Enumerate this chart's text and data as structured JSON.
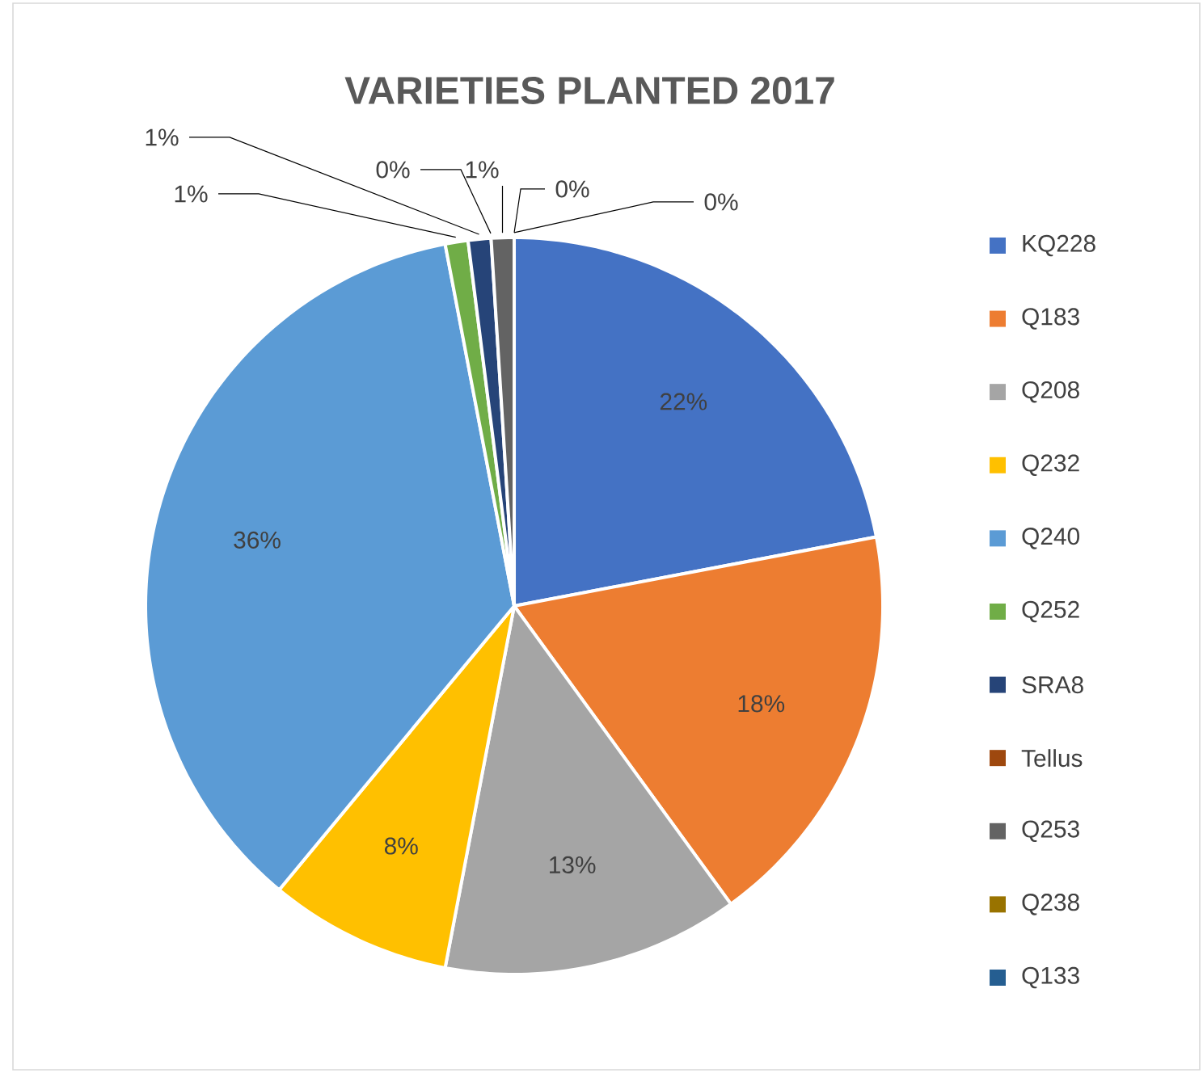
{
  "chart_data": {
    "type": "pie",
    "title": "VARIETIES PLANTED 2017",
    "categories": [
      "KQ228",
      "Q183",
      "Q208",
      "Q232",
      "Q240",
      "Q252",
      "SRA8",
      "Tellus",
      "Q253",
      "Q238",
      "Q133"
    ],
    "values": [
      22,
      18,
      13,
      8,
      36,
      1,
      1,
      0,
      1,
      0,
      0
    ],
    "value_labels": [
      "22%",
      "18%",
      "13%",
      "8%",
      "36%",
      "1%",
      "1%",
      "0%",
      "1%",
      "0%",
      "0%"
    ],
    "colors": [
      "#4472c4",
      "#ed7d31",
      "#a5a5a5",
      "#ffc000",
      "#5b9bd5",
      "#70ad47",
      "#264478",
      "#9e480e",
      "#636363",
      "#997300",
      "#255e91"
    ],
    "legend": "right"
  }
}
